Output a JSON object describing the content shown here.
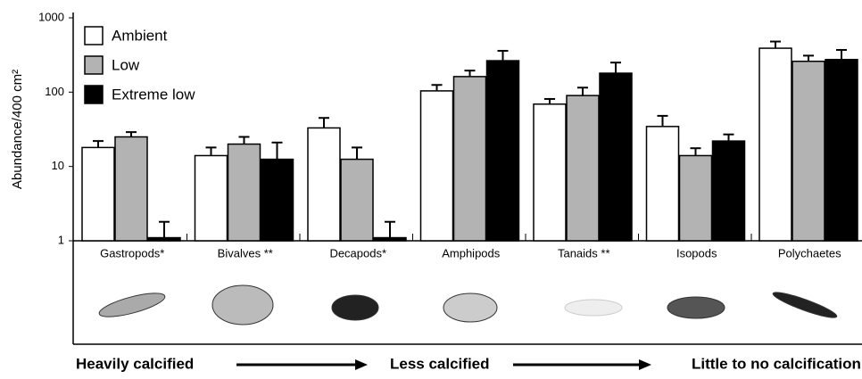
{
  "chart_data": {
    "type": "bar",
    "y_label": "Abundance/400 cm²",
    "categories": [
      "Gastropods*",
      "Bivalves **",
      "Decapods*",
      "Amphipods",
      "Tanaids **",
      "Isopods",
      "Polychaetes"
    ],
    "series": [
      {
        "name": "Ambient",
        "color": "#ffffff",
        "values": [
          18,
          14,
          33,
          104,
          69,
          34.5,
          390
        ],
        "errors": [
          4,
          4,
          12,
          21,
          12,
          13.5,
          90
        ]
      },
      {
        "name": "Low",
        "color": "#b3b3b3",
        "values": [
          25,
          20,
          12.5,
          162,
          90,
          14,
          260
        ],
        "errors": [
          4,
          5,
          5.5,
          33,
          25,
          3.6,
          50
        ]
      },
      {
        "name": "Extreme low",
        "color": "#000000",
        "values": [
          1.1,
          12.5,
          1.1,
          265,
          180,
          22,
          275
        ],
        "errors": [
          0.7,
          8.5,
          0.7,
          95,
          70,
          5,
          95
        ]
      }
    ],
    "ylim": [
      1,
      1000
    ],
    "yticks": [
      1,
      10,
      100,
      1000
    ],
    "log_scale": true,
    "legend": "upper left",
    "annotations": [
      "Heavily calcified",
      "Less calcified",
      "Little to no calcification"
    ]
  }
}
